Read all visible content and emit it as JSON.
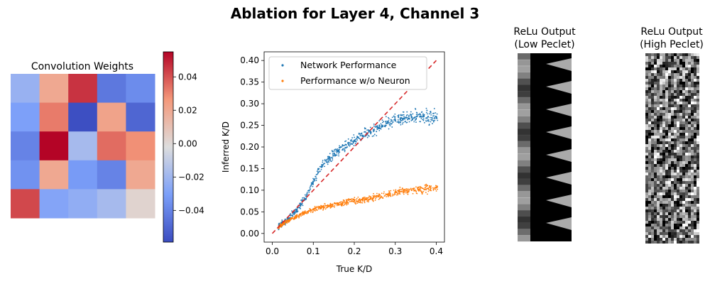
{
  "suptitle": "Ablation for Layer 4, Channel 3",
  "chart_data": [
    {
      "type": "heatmap",
      "title": "Convolution Weights",
      "colormap": "coolwarm",
      "vmin": -0.059,
      "vmax": 0.055,
      "values": [
        [
          -0.022,
          0.02,
          0.046,
          -0.044,
          -0.037
        ],
        [
          -0.03,
          0.032,
          -0.058,
          0.022,
          -0.05
        ],
        [
          -0.04,
          0.055,
          -0.018,
          0.035,
          0.028
        ],
        [
          -0.035,
          0.02,
          -0.032,
          -0.04,
          0.02
        ],
        [
          0.042,
          -0.028,
          -0.024,
          -0.018,
          0.002
        ]
      ],
      "colorbar_ticks": [
        0.04,
        0.02,
        0.0,
        -0.02,
        -0.04
      ],
      "colorbar_tick_labels": [
        "0.04",
        "0.02",
        "0.00",
        "−0.02",
        "−0.04"
      ]
    },
    {
      "type": "scatter",
      "xlabel": "True K/D",
      "ylabel": "Inferred K/D",
      "xlim": [
        -0.02,
        0.42
      ],
      "ylim": [
        -0.02,
        0.42
      ],
      "x_ticks": [
        0.0,
        0.1,
        0.2,
        0.3,
        0.4
      ],
      "x_tick_labels": [
        "0.0",
        "0.1",
        "0.2",
        "0.3",
        "0.4"
      ],
      "y_ticks": [
        0.0,
        0.05,
        0.1,
        0.15,
        0.2,
        0.25,
        0.3,
        0.35,
        0.4
      ],
      "y_tick_labels": [
        "0.00",
        "0.05",
        "0.10",
        "0.15",
        "0.20",
        "0.25",
        "0.30",
        "0.35",
        "0.40"
      ],
      "legend_position": "upper-left",
      "series": [
        {
          "name": "Network Performance",
          "color": "#1f77b4",
          "x": [
            0.02,
            0.04,
            0.06,
            0.08,
            0.1,
            0.12,
            0.14,
            0.16,
            0.18,
            0.2,
            0.22,
            0.24,
            0.26,
            0.28,
            0.3,
            0.32,
            0.34,
            0.36,
            0.38,
            0.4
          ],
          "y": [
            0.02,
            0.035,
            0.055,
            0.08,
            0.12,
            0.155,
            0.175,
            0.19,
            0.205,
            0.215,
            0.225,
            0.235,
            0.245,
            0.255,
            0.262,
            0.266,
            0.268,
            0.27,
            0.27,
            0.27
          ]
        },
        {
          "name": "Performance w/o Neuron",
          "color": "#ff7f0e",
          "x": [
            0.02,
            0.04,
            0.06,
            0.08,
            0.1,
            0.12,
            0.14,
            0.16,
            0.18,
            0.2,
            0.22,
            0.24,
            0.26,
            0.28,
            0.3,
            0.32,
            0.34,
            0.36,
            0.38,
            0.4
          ],
          "y": [
            0.018,
            0.03,
            0.04,
            0.048,
            0.055,
            0.06,
            0.064,
            0.068,
            0.072,
            0.075,
            0.078,
            0.082,
            0.086,
            0.09,
            0.095,
            0.098,
            0.1,
            0.102,
            0.104,
            0.106
          ]
        }
      ],
      "reference_line": {
        "x": [
          0.0,
          0.4
        ],
        "y": [
          0.0,
          0.4
        ],
        "color": "#d62728",
        "style": "dashed"
      }
    }
  ],
  "images": [
    {
      "title_line1": "ReLu Output",
      "title_line2": "(Low Peclet)"
    },
    {
      "title_line1": "ReLu Output",
      "title_line2": "(High Peclet)"
    }
  ]
}
